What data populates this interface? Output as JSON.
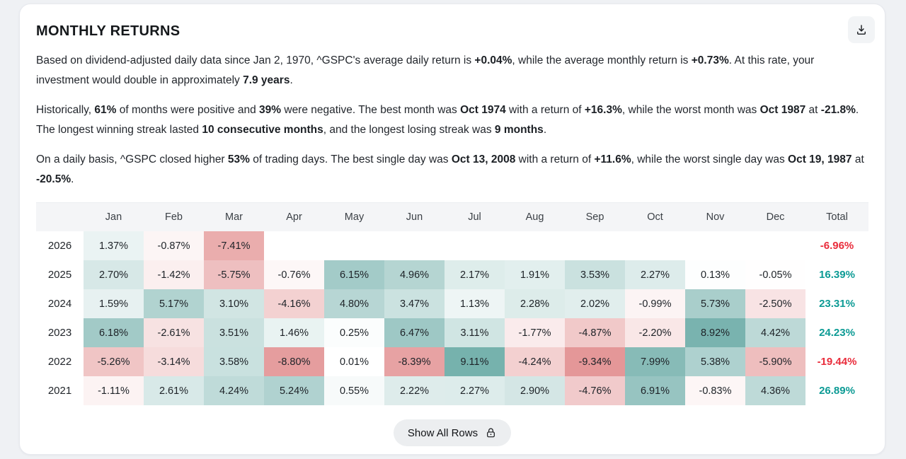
{
  "title": "MONTHLY RETURNS",
  "paragraphs": [
    {
      "segments": [
        {
          "text": "Based on dividend-adjusted daily data since Jan 2, 1970, ^GSPC's average daily return is ",
          "bold": false
        },
        {
          "text": "+0.04%",
          "bold": true
        },
        {
          "text": ", while the average monthly return is ",
          "bold": false
        },
        {
          "text": "+0.73%",
          "bold": true
        },
        {
          "text": ". At this rate, your investment would double in approximately ",
          "bold": false
        },
        {
          "text": "7.9 years",
          "bold": true
        },
        {
          "text": ".",
          "bold": false
        }
      ]
    },
    {
      "segments": [
        {
          "text": "Historically, ",
          "bold": false
        },
        {
          "text": "61%",
          "bold": true
        },
        {
          "text": " of months were positive and ",
          "bold": false
        },
        {
          "text": "39%",
          "bold": true
        },
        {
          "text": " were negative. The best month was ",
          "bold": false
        },
        {
          "text": "Oct 1974",
          "bold": true
        },
        {
          "text": " with a return of ",
          "bold": false
        },
        {
          "text": "+16.3%",
          "bold": true
        },
        {
          "text": ", while the worst month was ",
          "bold": false
        },
        {
          "text": "Oct 1987",
          "bold": true
        },
        {
          "text": " at ",
          "bold": false
        },
        {
          "text": "-21.8%",
          "bold": true
        },
        {
          "text": ". The longest winning streak lasted ",
          "bold": false
        },
        {
          "text": "10 consecutive months",
          "bold": true
        },
        {
          "text": ", and the longest losing streak was ",
          "bold": false
        },
        {
          "text": "9 months",
          "bold": true
        },
        {
          "text": ".",
          "bold": false
        }
      ]
    },
    {
      "segments": [
        {
          "text": "On a daily basis, ^GSPC closed higher ",
          "bold": false
        },
        {
          "text": "53%",
          "bold": true
        },
        {
          "text": " of trading days. The best single day was ",
          "bold": false
        },
        {
          "text": "Oct 13, 2008",
          "bold": true
        },
        {
          "text": " with a return of ",
          "bold": false
        },
        {
          "text": "+11.6%",
          "bold": true
        },
        {
          "text": ", while the worst single day was ",
          "bold": false
        },
        {
          "text": "Oct 19, 1987",
          "bold": true
        },
        {
          "text": " at ",
          "bold": false
        },
        {
          "text": "-20.5%",
          "bold": true
        },
        {
          "text": ".",
          "bold": false
        }
      ]
    }
  ],
  "table": {
    "month_headers": [
      "Jan",
      "Feb",
      "Mar",
      "Apr",
      "May",
      "Jun",
      "Jul",
      "Aug",
      "Sep",
      "Oct",
      "Nov",
      "Dec"
    ],
    "total_header": "Total",
    "rows": [
      {
        "year": "2026",
        "values": [
          1.37,
          -0.87,
          -7.41,
          null,
          null,
          null,
          null,
          null,
          null,
          null,
          null,
          null
        ],
        "total": -6.96
      },
      {
        "year": "2025",
        "values": [
          2.7,
          -1.42,
          -5.75,
          -0.76,
          6.15,
          4.96,
          2.17,
          1.91,
          3.53,
          2.27,
          0.13,
          -0.05
        ],
        "total": 16.39
      },
      {
        "year": "2024",
        "values": [
          1.59,
          5.17,
          3.1,
          -4.16,
          4.8,
          3.47,
          1.13,
          2.28,
          2.02,
          -0.99,
          5.73,
          -2.5
        ],
        "total": 23.31
      },
      {
        "year": "2023",
        "values": [
          6.18,
          -2.61,
          3.51,
          1.46,
          0.25,
          6.47,
          3.11,
          -1.77,
          -4.87,
          -2.2,
          8.92,
          4.42
        ],
        "total": 24.23
      },
      {
        "year": "2022",
        "values": [
          -5.26,
          -3.14,
          3.58,
          -8.8,
          0.01,
          -8.39,
          9.11,
          -4.24,
          -9.34,
          7.99,
          5.38,
          -5.9
        ],
        "total": -19.44
      },
      {
        "year": "2021",
        "values": [
          -1.11,
          2.61,
          4.24,
          5.24,
          0.55,
          2.22,
          2.27,
          2.9,
          -4.76,
          6.91,
          -0.83,
          4.36
        ],
        "total": 26.89
      }
    ]
  },
  "colors": {
    "heat_positive": "#69aaa5",
    "heat_negative": "#e29091",
    "heat_max_abs": 10,
    "total_positive": "#0d9b95",
    "total_negative": "#e92d3c"
  },
  "button": {
    "label": "Show All Rows"
  }
}
